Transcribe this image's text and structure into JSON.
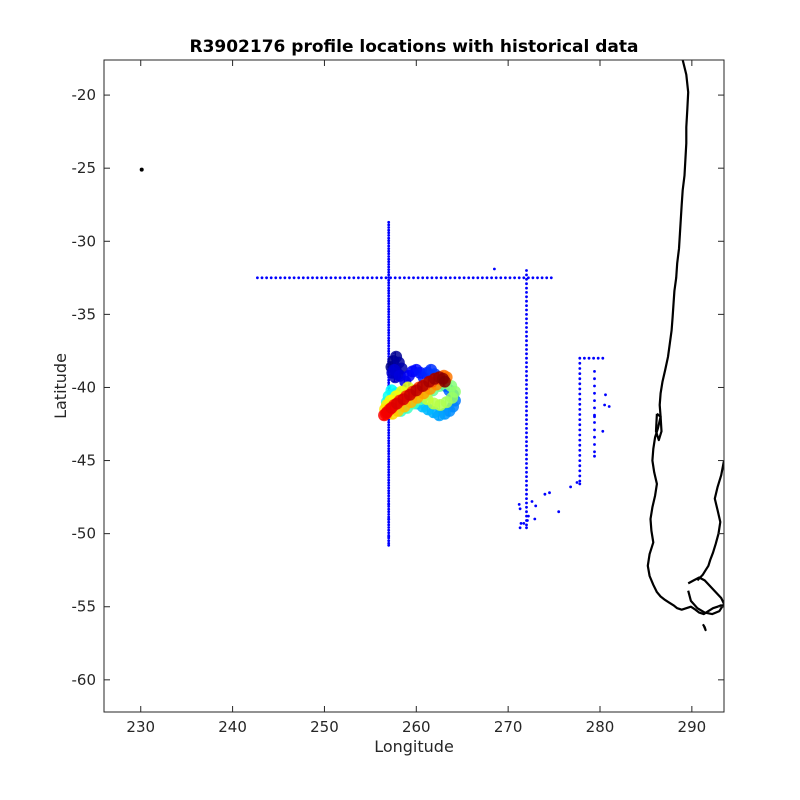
{
  "chart_data": {
    "type": "scatter",
    "title": "R3902176 profile locations with historical data",
    "xlabel": "Longitude",
    "ylabel": "Latitude",
    "xlim": [
      226,
      293.5
    ],
    "ylim": [
      -62.2,
      -17.6
    ],
    "xticks": [
      "230",
      "240",
      "250",
      "260",
      "270",
      "280",
      "290"
    ],
    "yticks": [
      "-20",
      "-25",
      "-30",
      "-35",
      "-40",
      "-45",
      "-50",
      "-55",
      "-60"
    ],
    "colors": {
      "historical": "#0000ff",
      "coastline": "#000000",
      "profile_colormap": "jet"
    },
    "series": [
      {
        "role": "historical",
        "x": [
          257,
          257,
          257,
          257,
          257,
          257,
          257,
          257,
          257,
          257,
          257,
          257,
          257,
          257,
          257,
          257,
          257,
          257,
          257,
          257,
          257,
          257,
          257,
          257,
          257,
          257,
          257,
          257,
          257,
          257,
          257,
          257,
          257,
          257,
          257,
          257,
          257,
          257,
          257,
          257,
          257,
          257,
          257,
          257,
          257,
          257,
          257,
          257,
          257,
          257,
          257,
          257,
          257,
          257,
          257,
          257,
          257,
          257,
          257,
          257,
          257,
          257,
          257,
          257,
          257,
          257,
          257,
          257,
          257,
          257,
          257,
          257,
          257,
          257,
          257,
          257,
          257,
          257,
          257,
          257,
          257,
          257,
          257,
          257,
          257,
          257,
          257,
          257,
          257,
          257,
          257,
          257,
          257,
          257,
          257,
          257,
          257,
          257,
          257,
          257,
          257,
          257,
          257,
          257,
          257,
          257,
          257,
          257,
          257,
          257,
          257,
          257,
          257,
          257,
          257,
          257,
          257,
          257,
          257,
          257,
          257,
          257,
          257,
          257,
          257,
          257,
          257,
          242.7,
          243.2,
          243.7,
          244.2,
          244.7,
          245.2,
          245.7,
          246.2,
          246.7,
          247.2,
          247.7,
          248.2,
          248.7,
          249.2,
          249.7,
          250.2,
          250.7,
          251.2,
          251.7,
          252.2,
          252.7,
          253.2,
          253.7,
          254.2,
          254.7,
          255.2,
          255.7,
          256.2,
          256.7,
          257.2,
          257.7,
          258.2,
          258.7,
          259.2,
          259.7,
          260.2,
          260.7,
          261.2,
          261.7,
          262.2,
          262.7,
          263.2,
          263.7,
          264.2,
          264.7,
          265.2,
          265.7,
          266.2,
          266.7,
          267.2,
          267.7,
          268.2,
          268.7,
          269.2,
          269.7,
          270.2,
          270.7,
          271.2,
          271.7,
          272.2,
          272.7,
          273.2,
          273.7,
          274.2,
          274.7,
          268.5,
          272,
          272,
          272,
          272,
          272,
          272,
          272,
          272,
          272,
          272,
          272,
          272,
          272,
          272,
          272,
          272,
          272,
          272,
          272,
          272,
          272,
          272,
          272,
          272,
          272,
          272,
          272,
          272,
          272,
          272,
          272,
          272,
          272,
          272,
          272,
          272,
          272,
          272,
          272,
          272,
          272,
          272,
          272,
          272,
          272,
          272,
          272,
          272,
          272,
          272,
          272,
          272,
          272,
          272,
          272,
          272,
          272,
          272,
          272,
          272,
          277.8,
          277.8,
          277.8,
          277.8,
          277.8,
          277.8,
          277.8,
          277.8,
          277.8,
          277.8,
          277.8,
          277.8,
          277.8,
          277.8,
          277.8,
          277.8,
          277.8,
          277.8,
          277.8,
          277.8,
          277.8,
          277.8,
          277.8,
          277.8,
          277.8,
          277.8,
          278.3,
          278.8,
          279.3,
          279.8,
          280.3,
          279.4,
          279.4,
          279.4,
          279.4,
          279.4,
          279.4,
          279.4,
          279.4,
          279.4,
          279.4,
          279.4,
          279.4,
          279.4,
          279.4,
          280.5,
          281,
          280.3,
          280.6,
          271.2,
          271.4,
          271.3,
          271.7,
          272.2,
          273.0,
          274.0,
          275.5,
          276.8,
          277.5,
          272.6,
          274.5,
          272.1,
          272.9,
          271.3
        ],
        "y": [
          -28.7,
          -28.88,
          -29.06,
          -29.24,
          -29.42,
          -29.6,
          -29.78,
          -29.96,
          -30.14,
          -30.32,
          -30.5,
          -30.68,
          -30.86,
          -31.04,
          -31.22,
          -31.4,
          -31.58,
          -31.76,
          -31.94,
          -32.12,
          -32.3,
          -32.48,
          -32.66,
          -32.84,
          -33.02,
          -33.2,
          -33.38,
          -33.56,
          -33.74,
          -33.92,
          -34.1,
          -34.28,
          -34.46,
          -34.64,
          -34.82,
          -35.0,
          -35.18,
          -35.36,
          -35.54,
          -35.72,
          -35.9,
          -36.08,
          -36.26,
          -36.44,
          -36.62,
          -36.8,
          -36.98,
          -37.16,
          -37.34,
          -37.52,
          -37.7,
          -37.88,
          -38.06,
          -38.24,
          -38.42,
          -38.6,
          -38.78,
          -38.96,
          -39.14,
          -39.32,
          -39.5,
          -39.68,
          -39.86,
          -40.04,
          -40.22,
          -40.4,
          -40.58,
          -40.76,
          -40.94,
          -41.12,
          -41.3,
          -41.48,
          -41.66,
          -41.84,
          -42.02,
          -42.2,
          -42.38,
          -42.56,
          -42.74,
          -42.92,
          -43.1,
          -43.28,
          -43.46,
          -43.64,
          -43.82,
          -44.0,
          -44.18,
          -44.36,
          -44.54,
          -44.72,
          -44.9,
          -45.08,
          -45.26,
          -45.44,
          -45.62,
          -45.8,
          -45.98,
          -46.16,
          -46.34,
          -46.52,
          -46.7,
          -46.88,
          -47.06,
          -47.24,
          -47.42,
          -47.6,
          -47.78,
          -47.96,
          -48.14,
          -48.32,
          -48.5,
          -48.68,
          -48.86,
          -49.04,
          -49.22,
          -49.4,
          -49.58,
          -49.76,
          -49.94,
          -50.12,
          -50.3,
          -50.48,
          -50.66,
          -50.8,
          -50.2,
          -49.0,
          -48.0,
          -32.5,
          -32.5,
          -32.5,
          -32.5,
          -32.5,
          -32.5,
          -32.5,
          -32.5,
          -32.5,
          -32.5,
          -32.5,
          -32.5,
          -32.5,
          -32.5,
          -32.5,
          -32.5,
          -32.5,
          -32.5,
          -32.5,
          -32.5,
          -32.5,
          -32.5,
          -32.5,
          -32.5,
          -32.5,
          -32.5,
          -32.5,
          -32.5,
          -32.5,
          -32.5,
          -32.5,
          -32.5,
          -32.5,
          -32.5,
          -32.5,
          -32.5,
          -32.5,
          -32.5,
          -32.5,
          -32.5,
          -32.5,
          -32.5,
          -32.5,
          -32.5,
          -32.5,
          -32.5,
          -32.5,
          -32.5,
          -32.5,
          -32.5,
          -32.5,
          -32.5,
          -32.5,
          -32.5,
          -32.5,
          -32.5,
          -32.5,
          -32.5,
          -32.5,
          -32.5,
          -32.5,
          -32.5,
          -32.5,
          -32.5,
          -32.5,
          -31.9,
          -32.0,
          -32.3,
          -32.6,
          -32.9,
          -33.2,
          -33.5,
          -33.8,
          -34.1,
          -34.4,
          -34.7,
          -35.0,
          -35.3,
          -35.6,
          -35.9,
          -36.2,
          -36.5,
          -36.8,
          -37.1,
          -37.4,
          -37.7,
          -38.0,
          -38.3,
          -38.6,
          -38.9,
          -39.2,
          -39.5,
          -39.8,
          -40.1,
          -40.4,
          -40.7,
          -41.0,
          -41.3,
          -41.6,
          -41.9,
          -42.2,
          -42.5,
          -42.8,
          -43.1,
          -43.4,
          -43.7,
          -44.0,
          -44.3,
          -44.6,
          -44.9,
          -45.2,
          -45.5,
          -45.8,
          -46.1,
          -46.4,
          -46.7,
          -47.0,
          -47.3,
          -47.6,
          -47.9,
          -48.2,
          -48.5,
          -48.8,
          -49.1,
          -49.4,
          -49.6,
          -38.0,
          -38.35,
          -38.7,
          -39.05,
          -39.4,
          -39.75,
          -40.1,
          -40.45,
          -40.8,
          -41.15,
          -41.5,
          -41.85,
          -42.2,
          -42.55,
          -42.9,
          -43.25,
          -43.6,
          -43.95,
          -44.3,
          -44.65,
          -45.0,
          -45.35,
          -45.7,
          -46.05,
          -46.4,
          -46.6,
          -38.0,
          -38.0,
          -38.0,
          -38.0,
          -38.0,
          -38.9,
          -39.4,
          -39.9,
          -40.4,
          -40.9,
          -41.4,
          -41.9,
          -42.4,
          -42.9,
          -43.4,
          -43.9,
          -44.4,
          -44.7,
          -42.0,
          -41.2,
          -41.3,
          -43.0,
          -40.5,
          -48.0,
          -49.3,
          -49.6,
          -49.3,
          -48.8,
          -48.1,
          -47.3,
          -48.5,
          -46.8,
          -46.5,
          -47.8,
          -47.2,
          -49.1,
          -49.0,
          -48.3
        ]
      },
      {
        "role": "profiles",
        "label_prefix": "1",
        "x": [
          257.3,
          257.5,
          257.8,
          258.1,
          258.4,
          258.0,
          257.7,
          257.4,
          257.6,
          258.2,
          258.8,
          259.2,
          259.6,
          260.0,
          260.4,
          260.8,
          261.2,
          261.6,
          262.0,
          262.4,
          262.8,
          263.2,
          263.6,
          264.0,
          264.2,
          264.0,
          263.6,
          263.1,
          262.5,
          261.9,
          261.3,
          260.7,
          260.1,
          259.5,
          258.9,
          258.3,
          257.8,
          257.3,
          257.0,
          256.8,
          257.2,
          257.7,
          258.3,
          259.0,
          259.7,
          260.4,
          261.1,
          261.8,
          262.5,
          263.2,
          263.8,
          264.2,
          263.9,
          263.3,
          262.6,
          261.9,
          261.2,
          260.5,
          259.8,
          259.1,
          258.4,
          257.8,
          257.2,
          256.8,
          256.6,
          256.9,
          257.4,
          258.0,
          258.7,
          259.4,
          260.1,
          260.8,
          261.5,
          262.2,
          262.8,
          263.3,
          263.0,
          262.4,
          261.7,
          261.0,
          260.3,
          259.6,
          258.9,
          258.2,
          257.6,
          257.1,
          256.7,
          256.5,
          256.8,
          257.3,
          257.9,
          258.6,
          259.3,
          260.0,
          260.7,
          261.4,
          262.0,
          262.5,
          262.9,
          263.1
        ],
        "y": [
          -38.6,
          -38.2,
          -37.9,
          -38.3,
          -38.7,
          -39.1,
          -39.3,
          -39.0,
          -38.8,
          -39.2,
          -39.6,
          -39.2,
          -38.9,
          -38.8,
          -39.0,
          -39.3,
          -39.0,
          -38.8,
          -39.1,
          -39.3,
          -39.6,
          -39.9,
          -40.2,
          -40.5,
          -40.9,
          -41.3,
          -41.6,
          -41.8,
          -41.9,
          -41.7,
          -41.5,
          -41.3,
          -41.1,
          -41.0,
          -40.8,
          -40.6,
          -40.4,
          -40.2,
          -40.6,
          -41.0,
          -41.3,
          -41.5,
          -41.6,
          -41.4,
          -41.1,
          -40.8,
          -40.5,
          -40.2,
          -39.9,
          -39.7,
          -39.9,
          -40.3,
          -40.7,
          -41.0,
          -41.2,
          -41.1,
          -40.8,
          -40.5,
          -40.2,
          -40.0,
          -40.3,
          -40.6,
          -40.9,
          -41.2,
          -41.5,
          -41.7,
          -41.8,
          -41.6,
          -41.3,
          -41.0,
          -40.7,
          -40.4,
          -40.1,
          -39.8,
          -39.5,
          -39.3,
          -39.2,
          -39.4,
          -39.6,
          -39.8,
          -40.0,
          -40.3,
          -40.6,
          -40.9,
          -41.2,
          -41.5,
          -41.8,
          -41.9,
          -41.7,
          -41.4,
          -41.1,
          -40.8,
          -40.5,
          -40.2,
          -39.9,
          -39.6,
          -39.4,
          -39.3,
          -39.4,
          -39.6
        ]
      },
      {
        "role": "isolated",
        "x": [
          230.1
        ],
        "y": [
          -25.1
        ]
      }
    ],
    "coastline": [
      {
        "name": "chile",
        "x": [
          289.0,
          289.4,
          289.6,
          289.5,
          289.4,
          289.4,
          289.3,
          289.2,
          289.0,
          288.9,
          288.8,
          288.7,
          288.6,
          288.4,
          288.3,
          288.1,
          288.0,
          287.9,
          287.8,
          287.6,
          287.4,
          287.1,
          286.8,
          286.6,
          286.5,
          286.6,
          286.3,
          286.0,
          285.8,
          285.7,
          285.9,
          286.2,
          286.0,
          285.7,
          285.5,
          285.6,
          285.8,
          285.4,
          285.2,
          285.4,
          285.8,
          286.2,
          286.6,
          287.0,
          287.5,
          288.0,
          288.4,
          288.9,
          289.4,
          289.9,
          290.4,
          290.8,
          291.3,
          291.8,
          292.3,
          292.8,
          293.2,
          293.5
        ],
        "y": [
          -17.6,
          -18.6,
          -19.8,
          -21.0,
          -22.2,
          -23.3,
          -24.4,
          -25.5,
          -26.5,
          -27.5,
          -28.5,
          -29.5,
          -30.5,
          -31.5,
          -32.5,
          -33.4,
          -34.3,
          -35.2,
          -36.1,
          -37.0,
          -37.9,
          -38.8,
          -39.6,
          -40.4,
          -41.2,
          -42.0,
          -42.8,
          -43.4,
          -44.2,
          -45.0,
          -45.8,
          -46.6,
          -47.4,
          -48.2,
          -49.0,
          -49.8,
          -50.6,
          -51.4,
          -52.2,
          -52.9,
          -53.5,
          -54.0,
          -54.3,
          -54.5,
          -54.7,
          -54.9,
          -55.1,
          -55.2,
          -55.1,
          -55.0,
          -55.2,
          -55.4,
          -55.5,
          -55.3,
          -55.1,
          -55.0,
          -54.9,
          -55.0
        ]
      },
      {
        "name": "patagonia-atlantic",
        "x": [
          293.5,
          293.2,
          292.8,
          292.5,
          292.8,
          293.1,
          292.9,
          292.6,
          292.3,
          292.0,
          291.8,
          291.5,
          291.2,
          290.9,
          290.6
        ],
        "y": [
          -45.0,
          -46.0,
          -46.8,
          -47.6,
          -48.4,
          -49.2,
          -50.0,
          -50.7,
          -51.3,
          -51.8,
          -52.2,
          -52.5,
          -52.8,
          -53.0,
          -53.2
        ]
      },
      {
        "name": "tierra-del-fuego",
        "x": [
          289.6,
          290.2,
          290.8,
          291.4,
          292.0,
          292.6,
          293.2,
          293.5,
          293.0,
          292.2,
          291.4,
          290.6,
          289.9,
          289.6
        ],
        "y": [
          -53.4,
          -53.2,
          -53.0,
          -53.2,
          -53.6,
          -54.0,
          -54.4,
          -54.8,
          -55.3,
          -55.5,
          -55.4,
          -55.1,
          -54.6,
          -53.9
        ]
      },
      {
        "name": "chiloe",
        "x": [
          286.2,
          286.6,
          286.7,
          286.4,
          286.1,
          286.2
        ],
        "y": [
          -41.8,
          -42.0,
          -43.0,
          -43.6,
          -43.0,
          -41.8
        ]
      },
      {
        "name": "islands",
        "x": [
          291.2,
          291.4,
          291.5,
          291.3
        ],
        "y": [
          -56.2,
          -56.4,
          -56.6,
          -56.3
        ]
      }
    ]
  }
}
